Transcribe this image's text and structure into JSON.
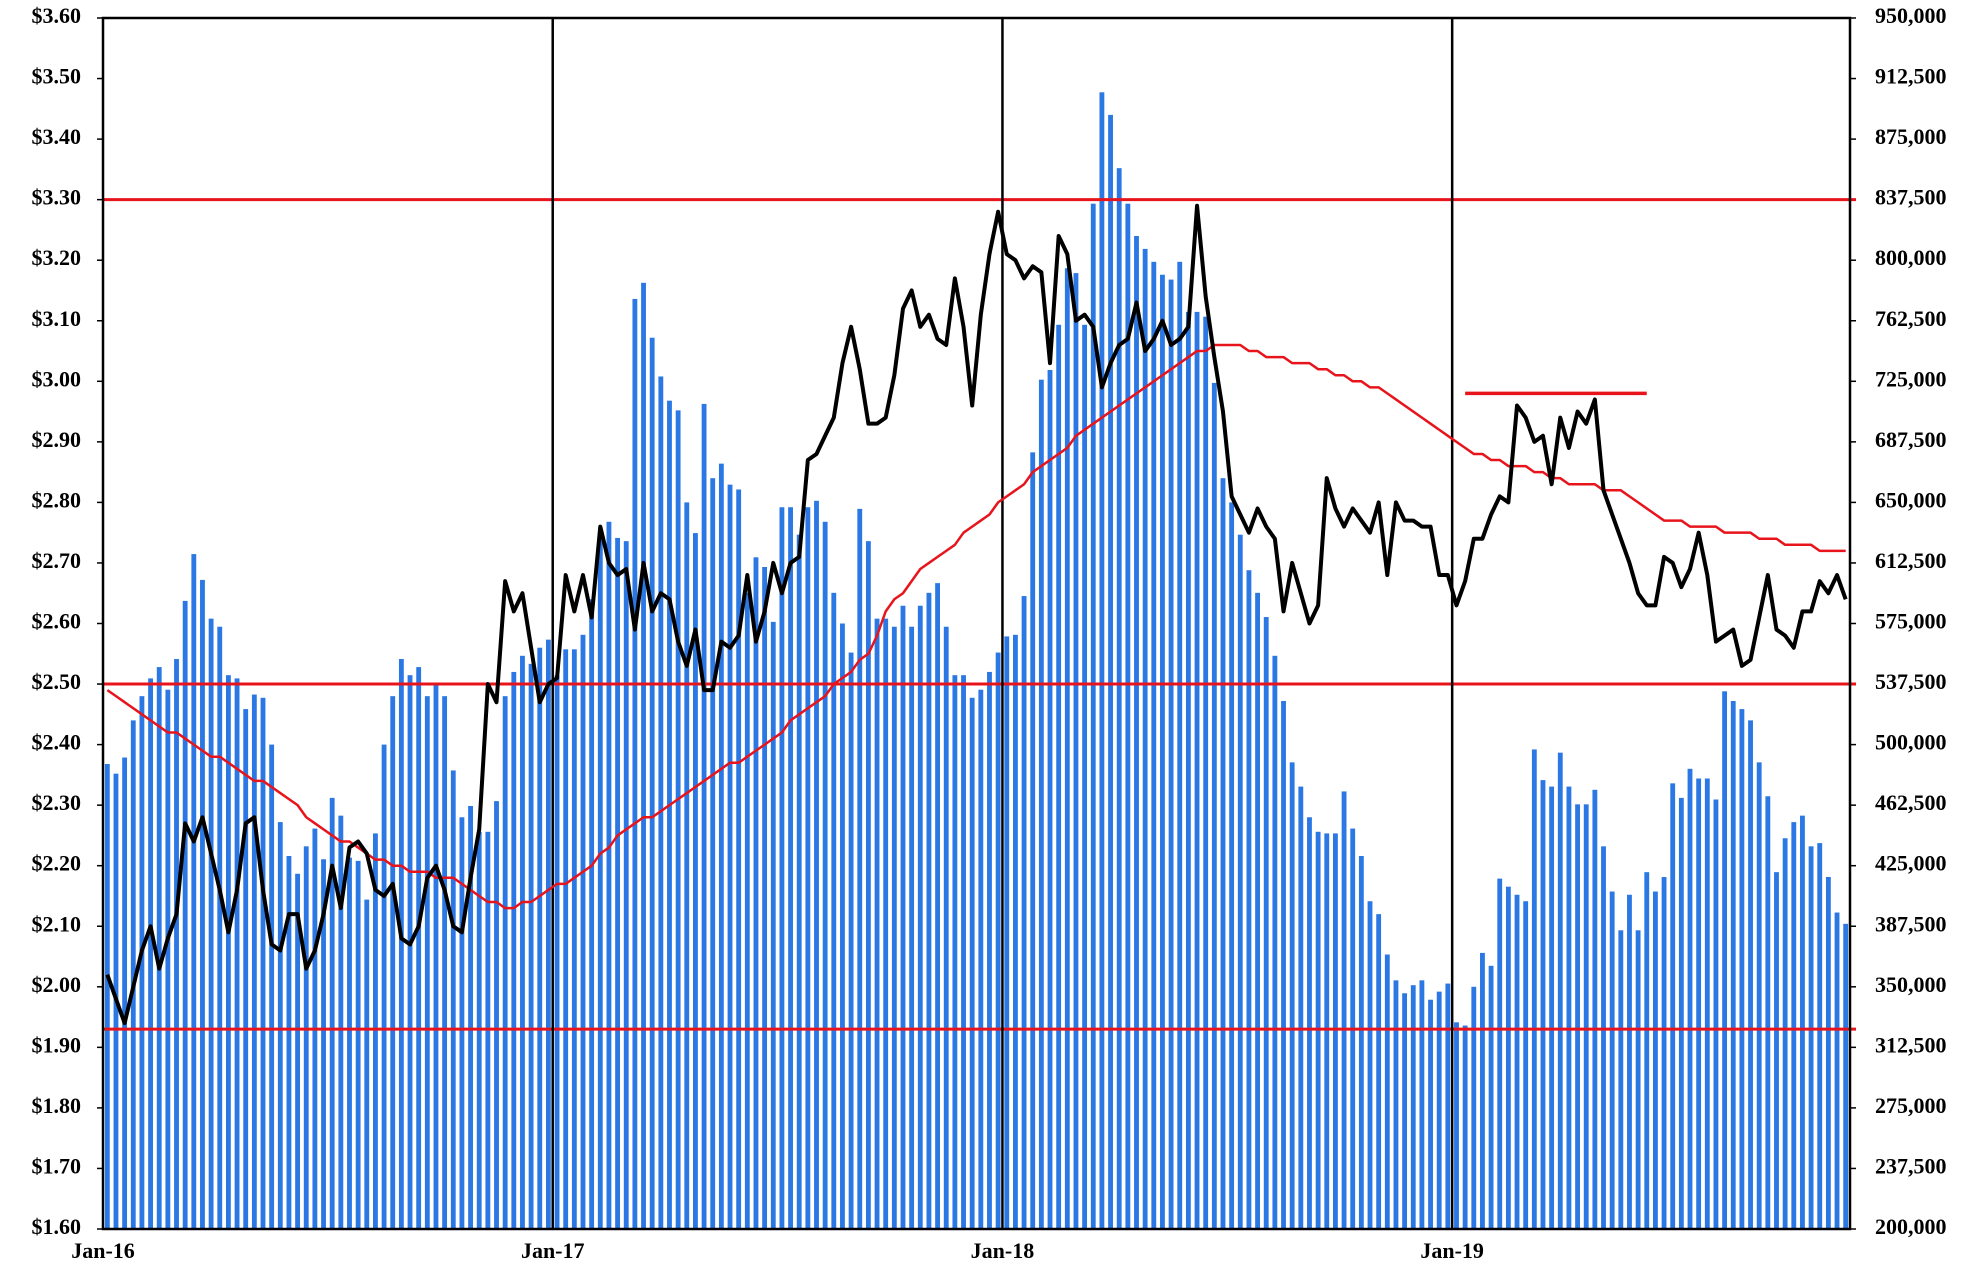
{
  "chart_data": {
    "type": "combo",
    "categories": [
      "Jan-16",
      null,
      null,
      null,
      null,
      null,
      null,
      null,
      null,
      null,
      null,
      null,
      null,
      null,
      null,
      null,
      null,
      null,
      null,
      null,
      null,
      null,
      null,
      null,
      null,
      null,
      null,
      null,
      null,
      null,
      null,
      null,
      null,
      null,
      null,
      null,
      null,
      null,
      null,
      null,
      null,
      null,
      null,
      null,
      null,
      null,
      null,
      null,
      null,
      null,
      null,
      null,
      "Jan-17",
      null,
      null,
      null,
      null,
      null,
      null,
      null,
      null,
      null,
      null,
      null,
      null,
      null,
      null,
      null,
      null,
      null,
      null,
      null,
      null,
      null,
      null,
      null,
      null,
      null,
      null,
      null,
      null,
      null,
      null,
      null,
      null,
      null,
      null,
      null,
      null,
      null,
      null,
      null,
      null,
      null,
      null,
      null,
      null,
      null,
      null,
      null,
      null,
      null,
      null,
      null,
      "Jan-18",
      null,
      null,
      null,
      null,
      null,
      null,
      null,
      null,
      null,
      null,
      null,
      null,
      null,
      null,
      null,
      null,
      null,
      null,
      null,
      null,
      null,
      null,
      null,
      null,
      null,
      null,
      null,
      null,
      null,
      null,
      null,
      null,
      null,
      null,
      null,
      null,
      null,
      null,
      null,
      null,
      null,
      null,
      null,
      null,
      null,
      null,
      null,
      null,
      null,
      null,
      null,
      "Jan-19",
      null,
      null,
      null,
      null,
      null,
      null,
      null,
      null,
      null,
      null,
      null,
      null,
      null,
      null,
      null,
      null,
      null,
      null,
      null,
      null,
      null,
      null,
      null,
      null,
      null,
      null,
      null,
      null,
      null,
      null,
      null,
      null,
      null,
      null,
      null,
      null,
      null,
      null,
      null,
      null,
      null,
      null,
      null,
      null,
      null
    ],
    "series": [
      {
        "type": "bar",
        "axis": "y2",
        "color": "#2b78e4",
        "values": [
          488000,
          482000,
          492000,
          515000,
          530000,
          541000,
          548000,
          534000,
          553000,
          589000,
          618000,
          602000,
          578000,
          573000,
          543000,
          541000,
          522000,
          531000,
          529000,
          500000,
          452000,
          431000,
          420000,
          437000,
          448000,
          429000,
          467000,
          456000,
          430000,
          428000,
          404000,
          445000,
          500000,
          530000,
          553000,
          543000,
          548000,
          530000,
          538000,
          530000,
          484000,
          455000,
          462000,
          446000,
          446000,
          465000,
          530000,
          545000,
          555000,
          550000,
          560000,
          565000,
          543000,
          559000,
          559000,
          568000,
          590000,
          630000,
          638000,
          628000,
          626000,
          776000,
          786000,
          752000,
          728000,
          713000,
          707000,
          650000,
          631000,
          711000,
          665000,
          674000,
          661000,
          658000,
          594000,
          616000,
          610000,
          576000,
          647000,
          647000,
          630000,
          647000,
          651000,
          638000,
          594000,
          575000,
          557000,
          646000,
          626000,
          578000,
          578000,
          573000,
          586000,
          573000,
          586000,
          594000,
          600000,
          573000,
          543000,
          543000,
          529000,
          534000,
          545000,
          557000,
          567000,
          568000,
          592000,
          681000,
          726000,
          732000,
          760000,
          795000,
          792000,
          760000,
          835000,
          904000,
          890000,
          857000,
          835000,
          815000,
          807000,
          799000,
          791000,
          788000,
          799000,
          768000,
          768000,
          765000,
          724000,
          665000,
          650000,
          630000,
          608000,
          594000,
          579000,
          555000,
          527000,
          489000,
          474000,
          455000,
          446000,
          445000,
          445000,
          471000,
          448000,
          431000,
          403000,
          395000,
          370000,
          354000,
          346000,
          351000,
          354000,
          342000,
          347000,
          352000,
          328000,
          326000,
          350000,
          371000,
          363000,
          417000,
          412000,
          407000,
          403000,
          497000,
          478000,
          474000,
          495000,
          474000,
          463000,
          463000,
          472000,
          437000,
          409000,
          385000,
          407000,
          385000,
          421000,
          409000,
          418000,
          476000,
          467000,
          485000,
          479000,
          479000,
          466000,
          533000,
          527000,
          522000,
          515000,
          489000,
          468000,
          421000,
          442000,
          452000,
          456000,
          437000,
          439000,
          418000,
          396000,
          389000
        ]
      },
      {
        "type": "line",
        "color": "#e8141c",
        "width": 2.5,
        "values": [
          2.49,
          2.48,
          2.47,
          2.46,
          2.45,
          2.44,
          2.43,
          2.42,
          2.42,
          2.41,
          2.4,
          2.39,
          2.38,
          2.38,
          2.37,
          2.36,
          2.35,
          2.34,
          2.34,
          2.33,
          2.32,
          2.31,
          2.3,
          2.28,
          2.27,
          2.26,
          2.25,
          2.24,
          2.24,
          2.23,
          2.22,
          2.21,
          2.21,
          2.2,
          2.2,
          2.19,
          2.19,
          2.19,
          2.18,
          2.18,
          2.18,
          2.17,
          2.16,
          2.15,
          2.14,
          2.14,
          2.13,
          2.13,
          2.14,
          2.14,
          2.15,
          2.16,
          2.17,
          2.17,
          2.18,
          2.19,
          2.2,
          2.22,
          2.23,
          2.25,
          2.26,
          2.27,
          2.28,
          2.28,
          2.29,
          2.3,
          2.31,
          2.32,
          2.33,
          2.34,
          2.35,
          2.36,
          2.37,
          2.37,
          2.38,
          2.39,
          2.4,
          2.41,
          2.42,
          2.44,
          2.45,
          2.46,
          2.47,
          2.48,
          2.5,
          2.51,
          2.52,
          2.54,
          2.55,
          2.58,
          2.62,
          2.64,
          2.65,
          2.67,
          2.69,
          2.7,
          2.71,
          2.72,
          2.73,
          2.75,
          2.76,
          2.77,
          2.78,
          2.8,
          2.81,
          2.82,
          2.83,
          2.85,
          2.86,
          2.87,
          2.88,
          2.89,
          2.91,
          2.92,
          2.93,
          2.94,
          2.95,
          2.96,
          2.97,
          2.98,
          2.99,
          3.0,
          3.01,
          3.02,
          3.03,
          3.04,
          3.05,
          3.05,
          3.06,
          3.06,
          3.06,
          3.06,
          3.05,
          3.05,
          3.04,
          3.04,
          3.04,
          3.03,
          3.03,
          3.03,
          3.02,
          3.02,
          3.01,
          3.01,
          3.0,
          3.0,
          2.99,
          2.99,
          2.98,
          2.97,
          2.96,
          2.95,
          2.94,
          2.93,
          2.92,
          2.91,
          2.9,
          2.89,
          2.88,
          2.88,
          2.87,
          2.87,
          2.86,
          2.86,
          2.86,
          2.85,
          2.85,
          2.84,
          2.84,
          2.83,
          2.83,
          2.83,
          2.83,
          2.82,
          2.82,
          2.82,
          2.81,
          2.8,
          2.79,
          2.78,
          2.77,
          2.77,
          2.77,
          2.76,
          2.76,
          2.76,
          2.76,
          2.75,
          2.75,
          2.75,
          2.75,
          2.74,
          2.74,
          2.74,
          2.73,
          2.73,
          2.73,
          2.73,
          2.72,
          2.72,
          2.72,
          2.72
        ]
      },
      {
        "type": "line",
        "color": "#000000",
        "width": 4,
        "values": [
          2.02,
          1.98,
          1.94,
          2.0,
          2.06,
          2.1,
          2.03,
          2.08,
          2.12,
          2.27,
          2.24,
          2.28,
          2.22,
          2.16,
          2.09,
          2.16,
          2.27,
          2.28,
          2.16,
          2.07,
          2.06,
          2.12,
          2.12,
          2.03,
          2.06,
          2.12,
          2.2,
          2.13,
          2.23,
          2.24,
          2.22,
          2.16,
          2.15,
          2.17,
          2.08,
          2.07,
          2.1,
          2.18,
          2.2,
          2.16,
          2.1,
          2.09,
          2.18,
          2.26,
          2.5,
          2.47,
          2.67,
          2.62,
          2.65,
          2.56,
          2.47,
          2.5,
          2.51,
          2.68,
          2.62,
          2.68,
          2.61,
          2.76,
          2.7,
          2.68,
          2.69,
          2.59,
          2.7,
          2.62,
          2.65,
          2.64,
          2.57,
          2.53,
          2.59,
          2.49,
          2.49,
          2.57,
          2.56,
          2.58,
          2.68,
          2.57,
          2.62,
          2.7,
          2.65,
          2.7,
          2.71,
          2.87,
          2.88,
          2.91,
          2.94,
          3.03,
          3.09,
          3.02,
          2.93,
          2.93,
          2.94,
          3.01,
          3.12,
          3.15,
          3.09,
          3.11,
          3.07,
          3.06,
          3.17,
          3.09,
          2.96,
          3.11,
          3.21,
          3.28,
          3.21,
          3.2,
          3.17,
          3.19,
          3.18,
          3.03,
          3.24,
          3.21,
          3.1,
          3.11,
          3.09,
          2.99,
          3.03,
          3.06,
          3.07,
          3.13,
          3.05,
          3.07,
          3.1,
          3.06,
          3.07,
          3.09,
          3.29,
          3.14,
          3.04,
          2.95,
          2.81,
          2.78,
          2.75,
          2.79,
          2.76,
          2.74,
          2.62,
          2.7,
          2.65,
          2.6,
          2.63,
          2.84,
          2.79,
          2.76,
          2.79,
          2.77,
          2.75,
          2.8,
          2.68,
          2.8,
          2.77,
          2.77,
          2.76,
          2.76,
          2.68,
          2.68,
          2.63,
          2.67,
          2.74,
          2.74,
          2.78,
          2.81,
          2.8,
          2.96,
          2.94,
          2.9,
          2.91,
          2.83,
          2.94,
          2.89,
          2.95,
          2.93,
          2.97,
          2.82,
          2.78,
          2.74,
          2.7,
          2.65,
          2.63,
          2.63,
          2.71,
          2.7,
          2.66,
          2.69,
          2.75,
          2.68,
          2.57,
          2.58,
          2.59,
          2.53,
          2.54,
          2.61,
          2.68,
          2.59,
          2.58,
          2.56,
          2.62,
          2.62,
          2.67,
          2.65,
          2.68,
          2.64
        ]
      }
    ],
    "ylim": [
      1.6,
      3.6
    ],
    "yticks": [
      {
        "value": 1.6,
        "label": "$1.60"
      },
      {
        "value": 1.7,
        "label": "$1.70"
      },
      {
        "value": 1.8,
        "label": "$1.80"
      },
      {
        "value": 1.9,
        "label": "$1.90"
      },
      {
        "value": 2.0,
        "label": "$2.00"
      },
      {
        "value": 2.1,
        "label": "$2.10"
      },
      {
        "value": 2.2,
        "label": "$2.20"
      },
      {
        "value": 2.3,
        "label": "$2.30"
      },
      {
        "value": 2.4,
        "label": "$2.40"
      },
      {
        "value": 2.5,
        "label": "$2.50"
      },
      {
        "value": 2.6,
        "label": "$2.60"
      },
      {
        "value": 2.7,
        "label": "$2.70"
      },
      {
        "value": 2.8,
        "label": "$2.80"
      },
      {
        "value": 2.9,
        "label": "$2.90"
      },
      {
        "value": 3.0,
        "label": "$3.00"
      },
      {
        "value": 3.1,
        "label": "$3.10"
      },
      {
        "value": 3.2,
        "label": "$3.20"
      },
      {
        "value": 3.3,
        "label": "$3.30"
      },
      {
        "value": 3.4,
        "label": "$3.40"
      },
      {
        "value": 3.5,
        "label": "$3.50"
      },
      {
        "value": 3.6,
        "label": "$3.60"
      }
    ],
    "y2lim": [
      200000,
      950000
    ],
    "y2ticks": [
      {
        "value": 200000,
        "label": "200,000"
      },
      {
        "value": 237500,
        "label": "237,500"
      },
      {
        "value": 275000,
        "label": "275,000"
      },
      {
        "value": 312500,
        "label": "312,500"
      },
      {
        "value": 350000,
        "label": "350,000"
      },
      {
        "value": 387500,
        "label": "387,500"
      },
      {
        "value": 425000,
        "label": "425,000"
      },
      {
        "value": 462500,
        "label": "462,500"
      },
      {
        "value": 500000,
        "label": "500,000"
      },
      {
        "value": 537500,
        "label": "537,500"
      },
      {
        "value": 575000,
        "label": "575,000"
      },
      {
        "value": 612500,
        "label": "612,500"
      },
      {
        "value": 650000,
        "label": "650,000"
      },
      {
        "value": 687500,
        "label": "687,500"
      },
      {
        "value": 725000,
        "label": "725,000"
      },
      {
        "value": 762500,
        "label": "762,500"
      },
      {
        "value": 800000,
        "label": "800,000"
      },
      {
        "value": 837500,
        "label": "837,500"
      },
      {
        "value": 875000,
        "label": "875,000"
      },
      {
        "value": 912500,
        "label": "912,500"
      },
      {
        "value": 950000,
        "label": "950,000"
      }
    ],
    "reference_lines": {
      "color": "#e8141c",
      "values": [
        3.3,
        2.5,
        1.93
      ]
    },
    "reference_segment": {
      "color": "#e8141c",
      "value": 2.98,
      "from": 157,
      "to": 178
    },
    "grid": false
  }
}
